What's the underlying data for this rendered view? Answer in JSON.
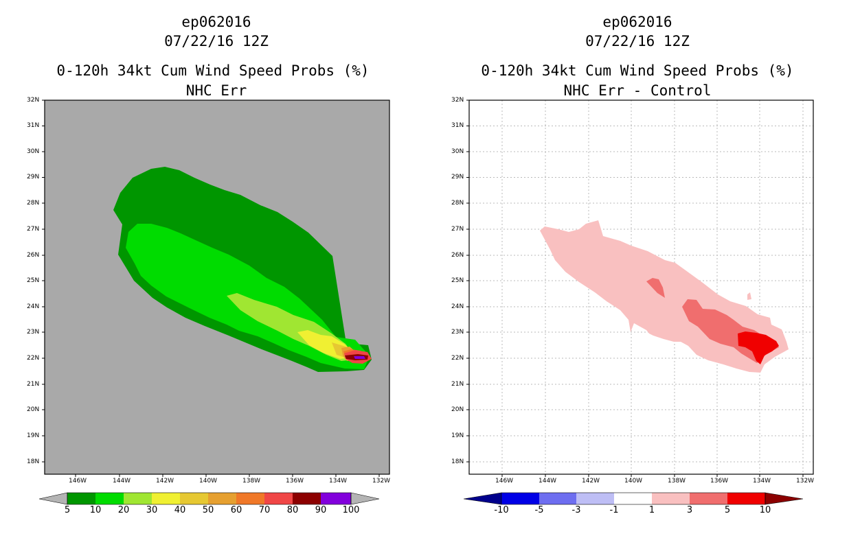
{
  "left_panel": {
    "storm_id": "ep062016",
    "date": "07/22/16 12Z",
    "product": "0-120h 34kt Cum Wind Speed Probs (%)",
    "subtitle": "NHC Err",
    "background_color": "#a9a9a9",
    "colorbar": {
      "labels": [
        "5",
        "10",
        "20",
        "30",
        "40",
        "50",
        "60",
        "70",
        "80",
        "90",
        "100"
      ],
      "colors": [
        "#009600",
        "#00dc00",
        "#a0e632",
        "#f0f032",
        "#e6c832",
        "#e6a030",
        "#f07828",
        "#f04646",
        "#8c0000",
        "#8200dc"
      ],
      "end_arrow_color": "#b4b4b4"
    }
  },
  "right_panel": {
    "storm_id": "ep062016",
    "date": "07/22/16 12Z",
    "product": "0-120h 34kt Cum Wind Speed Probs (%)",
    "subtitle": "NHC Err - Control",
    "background_color": "#ffffff",
    "colorbar": {
      "labels": [
        "-10",
        "-5",
        "-3",
        "-1",
        "1",
        "3",
        "5",
        "10"
      ],
      "colors": [
        "#0000e6",
        "#6e6ef0",
        "#bebef5",
        "#ffffff",
        "#f9c0c0",
        "#f06e6e",
        "#f00000"
      ],
      "low_arrow_color": "#00008c",
      "high_arrow_color": "#8c0000"
    }
  },
  "axes": {
    "lat_labels": [
      "32N",
      "31N",
      "30N",
      "29N",
      "28N",
      "27N",
      "26N",
      "25N",
      "24N",
      "23N",
      "22N",
      "21N",
      "20N",
      "19N",
      "18N"
    ],
    "lon_labels": [
      "146W",
      "144W",
      "142W",
      "140W",
      "138W",
      "136W",
      "134W",
      "132W"
    ]
  }
}
